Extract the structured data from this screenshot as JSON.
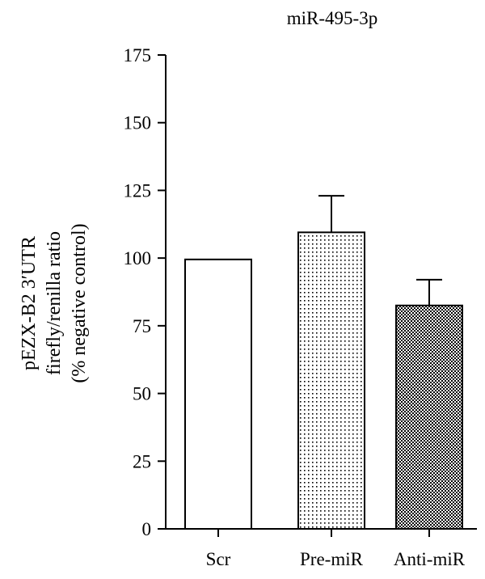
{
  "chart_data": {
    "type": "bar",
    "title": "miR-495-3p",
    "ylabel_lines": [
      "pEZX-B2 3′UTR",
      "firefly/renilla ratio",
      "(% negative control)"
    ],
    "xlabel": "",
    "ylim": [
      0,
      175
    ],
    "yticks": [
      0,
      25,
      50,
      75,
      100,
      125,
      150,
      175
    ],
    "categories": [
      "Scr",
      "Pre-miR",
      "Anti-miR"
    ],
    "values": [
      99.5,
      109.5,
      82.5
    ],
    "error": [
      0,
      13.5,
      9.5
    ],
    "fills": [
      "plain",
      "dotted",
      "checkered"
    ],
    "grid": false,
    "legend": "none",
    "colors": {
      "ink": "#000000",
      "background": "#ffffff"
    }
  }
}
